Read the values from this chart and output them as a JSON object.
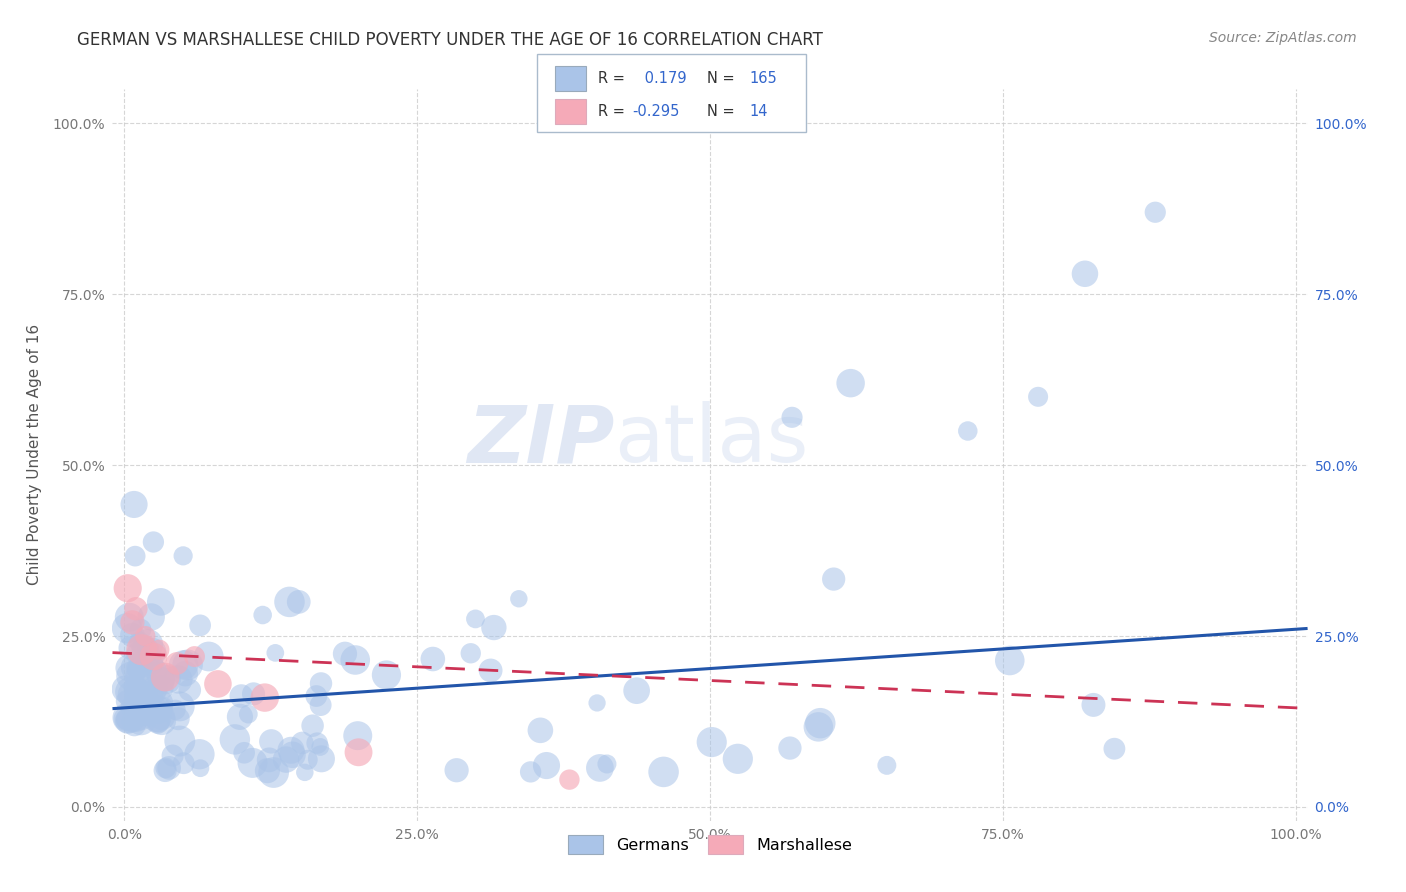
{
  "title": "GERMAN VS MARSHALLESE CHILD POVERTY UNDER THE AGE OF 16 CORRELATION CHART",
  "source": "Source: ZipAtlas.com",
  "ylabel": "Child Poverty Under the Age of 16",
  "title_fontsize": 12,
  "source_fontsize": 10,
  "label_fontsize": 11,
  "background_color": "#ffffff",
  "grid_color": "#cccccc",
  "watermark_zip": "ZIP",
  "watermark_atlas": "atlas",
  "legend_r_german": "0.179",
  "legend_n_german": "165",
  "legend_r_marshallese": "-0.295",
  "legend_n_marshallese": "14",
  "german_color": "#aac4e8",
  "marshallese_color": "#f5aab8",
  "german_line_color": "#2255aa",
  "marshallese_line_color": "#cc3355",
  "german_line_slope": 0.115,
  "german_line_intercept": 0.145,
  "marshallese_line_slope": -0.08,
  "marshallese_line_intercept": 0.225
}
